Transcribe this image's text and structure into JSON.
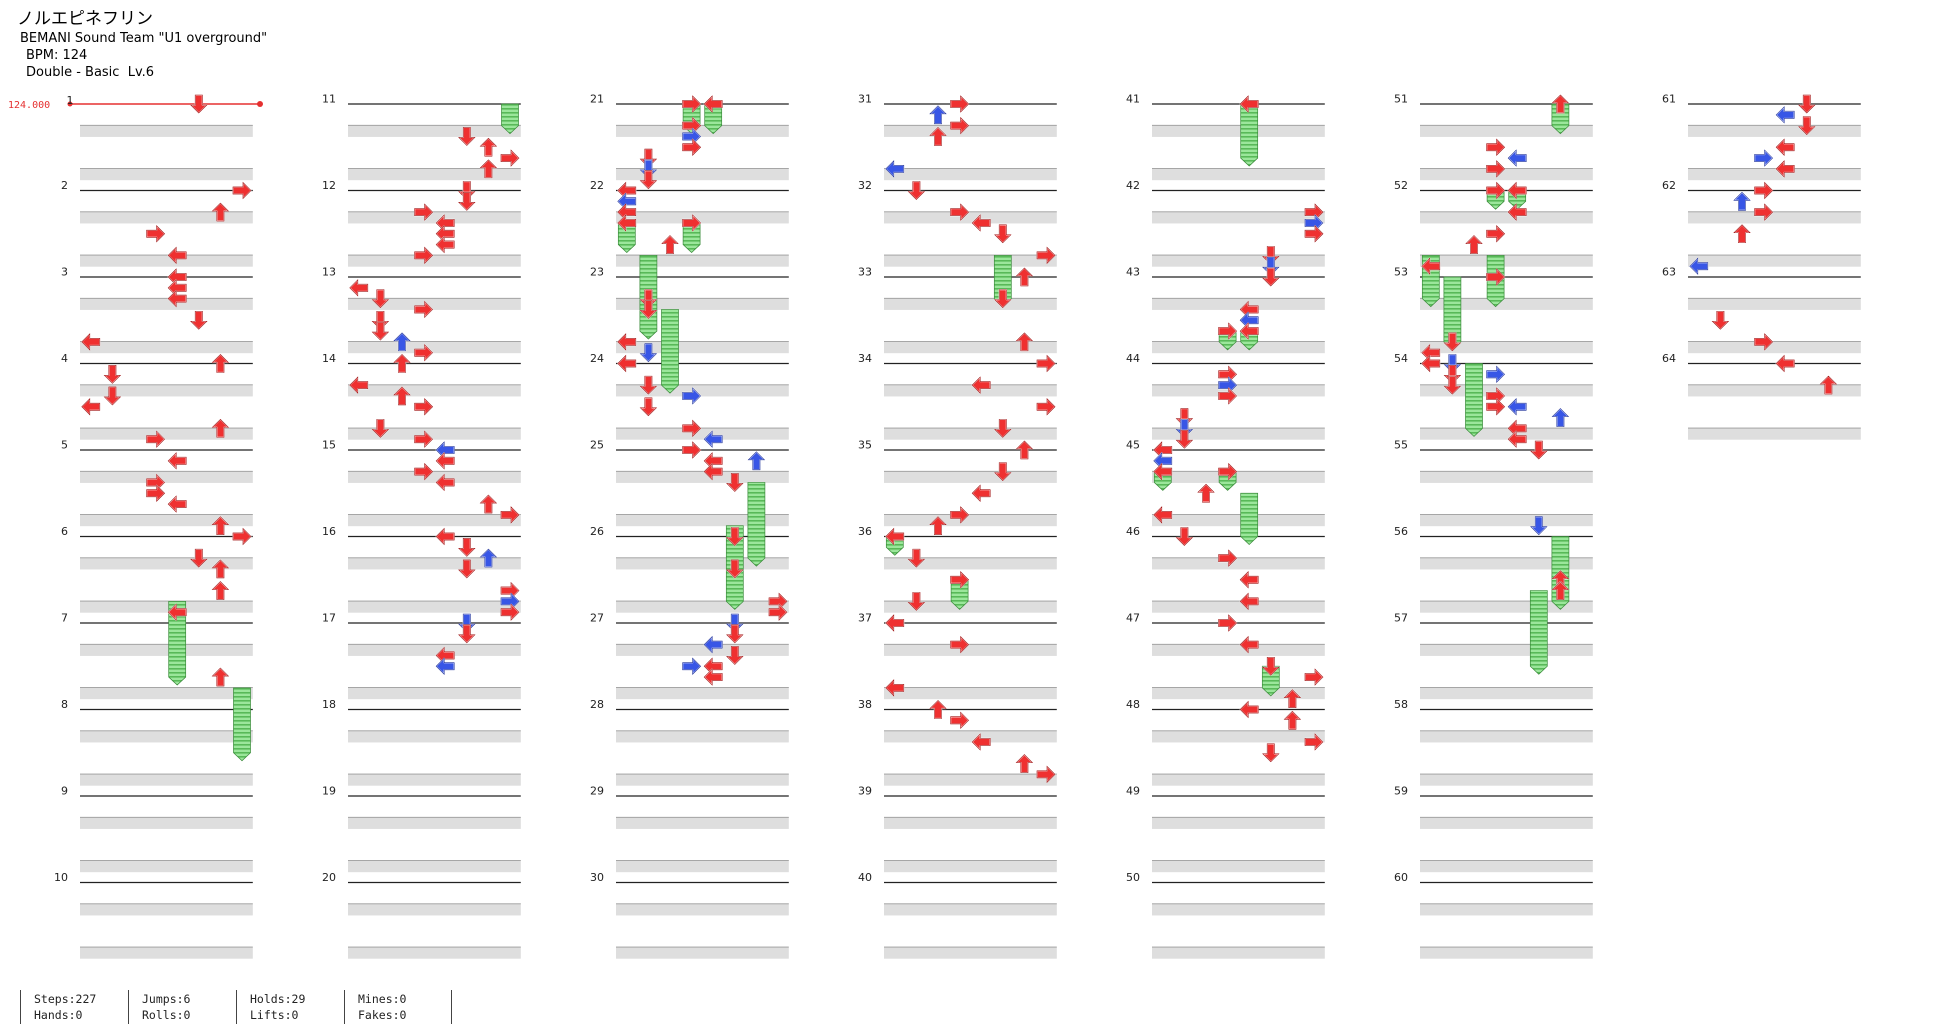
{
  "song": {
    "title": "ノルエピネフリン",
    "artist": "BEMANI Sound Team \"U1 overground\"",
    "bpm_text": "BPM: 124",
    "difficulty": "Double - Basic  Lv.6"
  },
  "bpm_marker": "124.000",
  "measure_labels": [
    "1",
    "2",
    "3",
    "4",
    "5",
    "6",
    "7",
    "8",
    "9",
    "10",
    "11",
    "12",
    "13",
    "14",
    "15",
    "16",
    "17",
    "18",
    "19",
    "20",
    "21",
    "22",
    "23",
    "24",
    "25",
    "26",
    "27",
    "28",
    "29",
    "30",
    "31",
    "32",
    "33",
    "34",
    "35",
    "36",
    "37",
    "38",
    "39",
    "40",
    "41",
    "42",
    "43",
    "44",
    "45",
    "46",
    "47",
    "48",
    "49",
    "50",
    "51",
    "52",
    "53",
    "54",
    "55",
    "56",
    "57",
    "58",
    "59",
    "60",
    "61",
    "62",
    "63",
    "64"
  ],
  "note_colors": {
    "quarter": "#ef3030",
    "eighth": "#3856e6",
    "hold": "#8fe08f",
    "hold_stroke": "#3a8a3a",
    "bpm": "#e53030"
  },
  "stats": {
    "steps": "Steps:227",
    "hands": "Hands:0",
    "jumps": "Jumps:6",
    "rolls": "Rolls:0",
    "holds": "Holds:29",
    "lifts": "Lifts:0",
    "mines": "Mines:0",
    "fakes": "Fakes:0"
  }
}
